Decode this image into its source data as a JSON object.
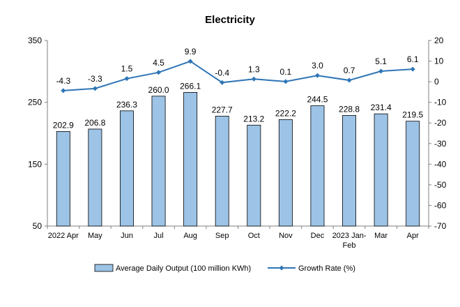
{
  "chart_data": {
    "type": "bar",
    "title": "Electricity",
    "categories": [
      "2022 Apr",
      "May",
      "Jun",
      "Jul",
      "Aug",
      "Sep",
      "Oct",
      "Nov",
      "Dec",
      "2023 Jan-Feb",
      "Mar",
      "Apr"
    ],
    "category_lines": [
      [
        "2022 Apr"
      ],
      [
        "May"
      ],
      [
        "Jun"
      ],
      [
        "Jul"
      ],
      [
        "Aug"
      ],
      [
        "Sep"
      ],
      [
        "Oct"
      ],
      [
        "Nov"
      ],
      [
        "Dec"
      ],
      [
        "2023 Jan-",
        "Feb"
      ],
      [
        "Mar"
      ],
      [
        "Apr"
      ]
    ],
    "series": [
      {
        "name": "Average Daily Output (100 million KWh)",
        "type": "bar",
        "axis": "left",
        "color": "#9dc3e6",
        "values": [
          202.9,
          206.8,
          236.3,
          260.0,
          266.1,
          227.7,
          213.2,
          222.2,
          244.5,
          228.8,
          231.4,
          219.5
        ],
        "labels": [
          "202.9",
          "206.8",
          "236.3",
          "260.0",
          "266.1",
          "227.7",
          "213.2",
          "222.2",
          "244.5",
          "228.8",
          "231.4",
          "219.5"
        ]
      },
      {
        "name": "Growth Rate (%)",
        "type": "line",
        "axis": "right",
        "color": "#2e75b6",
        "values": [
          -4.3,
          -3.3,
          1.5,
          4.5,
          9.9,
          -0.4,
          1.3,
          0.1,
          3.0,
          0.7,
          5.1,
          6.1
        ],
        "labels": [
          "-4.3",
          "-3.3",
          "1.5",
          "4.5",
          "9.9",
          "-0.4",
          "1.3",
          "0.1",
          "3.0",
          "0.7",
          "5.1",
          "6.1"
        ]
      }
    ],
    "left_axis": {
      "min": 50,
      "max": 350,
      "ticks": [
        50,
        150,
        250,
        350
      ]
    },
    "right_axis": {
      "min": -70,
      "max": 20,
      "ticks": [
        20,
        10,
        0,
        -10,
        -20,
        -30,
        -40,
        -50,
        -60,
        -70
      ]
    },
    "grid": false,
    "legend_position": "bottom"
  }
}
